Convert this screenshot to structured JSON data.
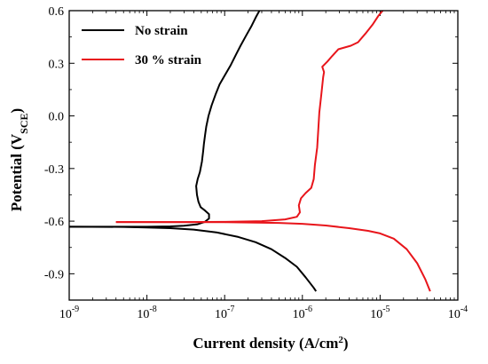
{
  "chart_data": {
    "type": "line",
    "xscale": "log",
    "xlim": [
      1e-09,
      0.0001
    ],
    "ylim": [
      -1.05,
      0.6
    ],
    "xlabel": "Current density (A/cm²)",
    "ylabel": "Potential (V_SCE)",
    "x_ticks": [
      1e-09,
      1e-08,
      1e-07,
      1e-06,
      1e-05,
      0.0001
    ],
    "x_tick_labels": [
      {
        "base": "10",
        "exp": "-9"
      },
      {
        "base": "10",
        "exp": "-8"
      },
      {
        "base": "10",
        "exp": "-7"
      },
      {
        "base": "10",
        "exp": "-6"
      },
      {
        "base": "10",
        "exp": "-5"
      },
      {
        "base": "10",
        "exp": "-4"
      }
    ],
    "y_ticks": [
      -0.9,
      -0.6,
      -0.3,
      0.0,
      0.3,
      0.6
    ],
    "y_tick_labels": [
      "-0.9",
      "-0.6",
      "-0.3",
      "0.0",
      "0.3",
      "0.6"
    ],
    "legend_position": "top-left",
    "series": [
      {
        "name": "No strain",
        "color": "#000000",
        "points": [
          [
            1e-09,
            -0.632
          ],
          [
            3e-09,
            -0.632
          ],
          [
            1e-08,
            -0.632
          ],
          [
            2e-08,
            -0.63
          ],
          [
            3e-08,
            -0.626
          ],
          [
            4.5e-08,
            -0.618
          ],
          [
            5.5e-08,
            -0.605
          ],
          [
            6.3e-08,
            -0.585
          ],
          [
            6.3e-08,
            -0.56
          ],
          [
            5.6e-08,
            -0.54
          ],
          [
            4.9e-08,
            -0.52
          ],
          [
            4.6e-08,
            -0.49
          ],
          [
            4.4e-08,
            -0.45
          ],
          [
            4.3e-08,
            -0.4
          ],
          [
            4.5e-08,
            -0.36
          ],
          [
            4.8e-08,
            -0.32
          ],
          [
            5.1e-08,
            -0.26
          ],
          [
            5.3e-08,
            -0.2
          ],
          [
            5.4e-08,
            -0.16
          ],
          [
            5.6e-08,
            -0.11
          ],
          [
            5.8e-08,
            -0.06
          ],
          [
            6.2e-08,
            0.0
          ],
          [
            6.8e-08,
            0.06
          ],
          [
            7.6e-08,
            0.12
          ],
          [
            8.6e-08,
            0.18
          ],
          [
            1e-07,
            0.23
          ],
          [
            1.2e-07,
            0.29
          ],
          [
            1.4e-07,
            0.35
          ],
          [
            1.6e-07,
            0.4
          ],
          [
            1.9e-07,
            0.46
          ],
          [
            2.2e-07,
            0.51
          ],
          [
            2.5e-07,
            0.56
          ],
          [
            2.8e-07,
            0.6
          ]
        ],
        "cathodic_points": [
          [
            1e-09,
            -0.632
          ],
          [
            5e-09,
            -0.633
          ],
          [
            1e-08,
            -0.636
          ],
          [
            2e-08,
            -0.64
          ],
          [
            4e-08,
            -0.648
          ],
          [
            8e-08,
            -0.665
          ],
          [
            1.5e-07,
            -0.69
          ],
          [
            2.5e-07,
            -0.72
          ],
          [
            4e-07,
            -0.76
          ],
          [
            6e-07,
            -0.81
          ],
          [
            8.5e-07,
            -0.86
          ],
          [
            1.1e-06,
            -0.92
          ],
          [
            1.4e-06,
            -0.98
          ],
          [
            1.5e-06,
            -1.0
          ]
        ]
      },
      {
        "name": "30 % strain",
        "color": "#e8151b",
        "points": [
          [
            4e-09,
            -0.605
          ],
          [
            1e-08,
            -0.605
          ],
          [
            3e-08,
            -0.605
          ],
          [
            1e-07,
            -0.604
          ],
          [
            3e-07,
            -0.6
          ],
          [
            6e-07,
            -0.59
          ],
          [
            8.5e-07,
            -0.575
          ],
          [
            9.3e-07,
            -0.55
          ],
          [
            9e-07,
            -0.51
          ],
          [
            9.6e-07,
            -0.47
          ],
          [
            1.1e-06,
            -0.44
          ],
          [
            1.3e-06,
            -0.41
          ],
          [
            1.4e-06,
            -0.36
          ],
          [
            1.45e-06,
            -0.28
          ],
          [
            1.55e-06,
            -0.18
          ],
          [
            1.6e-06,
            -0.08
          ],
          [
            1.65e-06,
            0.02
          ],
          [
            1.75e-06,
            0.12
          ],
          [
            1.85e-06,
            0.22
          ],
          [
            1.9e-06,
            0.25
          ],
          [
            1.8e-06,
            0.28
          ],
          [
            2.1e-06,
            0.31
          ],
          [
            2.4e-06,
            0.34
          ],
          [
            2.9e-06,
            0.38
          ],
          [
            4.2e-06,
            0.4
          ],
          [
            5.2e-06,
            0.42
          ],
          [
            6.5e-06,
            0.47
          ],
          [
            8e-06,
            0.52
          ],
          [
            9.5e-06,
            0.57
          ],
          [
            1.08e-05,
            0.6
          ]
        ],
        "cathodic_points": [
          [
            4e-09,
            -0.605
          ],
          [
            1e-07,
            -0.606
          ],
          [
            5e-07,
            -0.61
          ],
          [
            1e-06,
            -0.615
          ],
          [
            2e-06,
            -0.625
          ],
          [
            4e-06,
            -0.64
          ],
          [
            7e-06,
            -0.655
          ],
          [
            1e-05,
            -0.67
          ],
          [
            1.5e-05,
            -0.7
          ],
          [
            2.2e-05,
            -0.76
          ],
          [
            3e-05,
            -0.84
          ],
          [
            3.8e-05,
            -0.93
          ],
          [
            4.4e-05,
            -1.0
          ]
        ]
      }
    ]
  }
}
